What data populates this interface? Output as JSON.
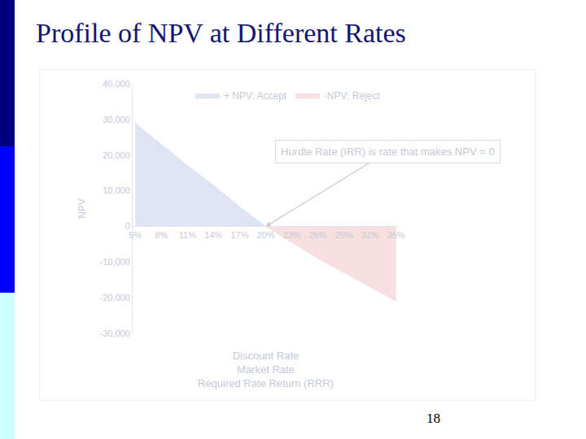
{
  "chart_data": {
    "type": "area",
    "title": "Profile of NPV at Different Rates",
    "categories": [
      "5%",
      "8%",
      "11%",
      "14%",
      "17%",
      "20%",
      "23%",
      "26%",
      "29%",
      "32%",
      "35%"
    ],
    "series": [
      {
        "name": "+ NPV: Accept",
        "color": "#dfe4f4",
        "values": [
          29000,
          23000,
          17000,
          11500,
          5500,
          0,
          null,
          null,
          null,
          null,
          null
        ]
      },
      {
        "name": "-NPV: Reject",
        "color": "#f8e0e0",
        "values": [
          null,
          null,
          null,
          null,
          null,
          0,
          -4500,
          -9000,
          -13000,
          -17000,
          -21000
        ]
      }
    ],
    "ylim": [
      -30000,
      40000
    ],
    "yticks": [
      {
        "value": -30000,
        "label": "-30,000"
      },
      {
        "value": -20000,
        "label": "-20,000"
      },
      {
        "value": -10000,
        "label": "-10,000"
      },
      0,
      {
        "value": 10000,
        "label": "10,000"
      },
      {
        "value": 20000,
        "label": "20,000"
      },
      {
        "value": 30000,
        "label": "30,000"
      },
      {
        "value": 40000,
        "label": "40,000"
      }
    ],
    "y_label": "NPV",
    "x_label": [
      "Discount Rate",
      "Market Rate",
      "Required Rate Return (RRR)"
    ],
    "annotations": [
      {
        "text": "Hurdle Rate (IRR) is rate that makes NPV = 0",
        "category": "20%",
        "value": 0
      }
    ],
    "legend": "top",
    "grid": false
  },
  "page_number": 18
}
